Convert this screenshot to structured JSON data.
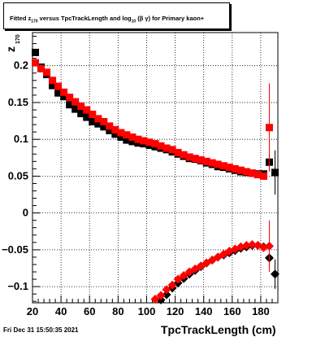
{
  "title": {
    "prefix": "Fitted  z",
    "z_sub": "170",
    "middle": "  versus TpcTrackLength and log",
    "log_sub": "10",
    "suffix": " (β  γ) for Primary kaon+"
  },
  "footer": {
    "timestamp": "Fri Dec 31 15:50:35 2021"
  },
  "chart_data": {
    "type": "scatter",
    "title": "Fitted z170 versus TpcTrackLength and log10 (β γ) for Primary kaon+",
    "xlabel": "TpcTrackLength (cm)",
    "ylabel": "z",
    "ylabel_sub": "170",
    "xlim": [
      20,
      192
    ],
    "ylim": [
      -0.122,
      0.245
    ],
    "xticks": [
      20,
      40,
      60,
      80,
      100,
      120,
      140,
      160,
      180
    ],
    "xtick_labels": [
      "20",
      "40",
      "60",
      "80",
      "100",
      "120",
      "140",
      "160",
      "180"
    ],
    "yticks": [
      -0.1,
      -0.05,
      0,
      0.05,
      0.1,
      0.15,
      0.2
    ],
    "ytick_labels": [
      "−0.1",
      "−0.05",
      "0",
      "0.05",
      "0.1",
      "0.15",
      "0.2"
    ],
    "grid": true,
    "series": [
      {
        "marker": "square",
        "color": "#000000",
        "x": [
          22,
          26,
          30,
          34,
          38,
          42,
          46,
          50,
          54,
          58,
          62,
          66,
          70,
          74,
          78,
          82,
          86,
          90,
          94,
          98,
          102,
          106,
          110,
          114,
          118,
          122,
          126,
          130,
          134,
          138,
          142,
          146,
          150,
          154,
          158,
          162,
          166,
          170,
          174,
          178,
          182,
          186,
          190
        ],
        "y": [
          0.218,
          0.198,
          0.188,
          0.173,
          0.163,
          0.158,
          0.147,
          0.141,
          0.135,
          0.13,
          0.124,
          0.121,
          0.117,
          0.112,
          0.107,
          0.103,
          0.099,
          0.097,
          0.095,
          0.094,
          0.092,
          0.09,
          0.088,
          0.086,
          0.083,
          0.08,
          0.077,
          0.074,
          0.073,
          0.071,
          0.068,
          0.066,
          0.063,
          0.062,
          0.06,
          0.058,
          0.056,
          0.055,
          0.054,
          0.053,
          0.053,
          0.069,
          0.055
        ],
        "yerr": [
          0,
          0,
          0,
          0,
          0,
          0,
          0,
          0,
          0,
          0,
          0,
          0,
          0,
          0,
          0,
          0,
          0,
          0,
          0,
          0,
          0,
          0,
          0,
          0,
          0,
          0,
          0,
          0,
          0,
          0,
          0,
          0,
          0,
          0,
          0,
          0,
          0,
          0,
          0,
          0,
          0,
          0.012,
          0.03
        ]
      },
      {
        "marker": "square",
        "color": "#ff0000",
        "x": [
          22,
          26,
          30,
          34,
          38,
          42,
          46,
          50,
          54,
          58,
          62,
          66,
          70,
          74,
          78,
          82,
          86,
          90,
          94,
          98,
          102,
          106,
          110,
          114,
          118,
          122,
          126,
          130,
          134,
          138,
          142,
          146,
          150,
          154,
          158,
          162,
          166,
          170,
          174,
          178,
          182,
          186
        ],
        "y": [
          0.204,
          0.196,
          0.191,
          0.18,
          0.172,
          0.164,
          0.157,
          0.151,
          0.145,
          0.14,
          0.134,
          0.128,
          0.124,
          0.118,
          0.113,
          0.109,
          0.106,
          0.103,
          0.1,
          0.098,
          0.096,
          0.094,
          0.091,
          0.088,
          0.086,
          0.082,
          0.079,
          0.076,
          0.074,
          0.072,
          0.07,
          0.068,
          0.066,
          0.064,
          0.062,
          0.06,
          0.058,
          0.056,
          0.054,
          0.052,
          0.05,
          0.116
        ],
        "yerr": [
          0,
          0,
          0,
          0,
          0,
          0,
          0,
          0,
          0,
          0,
          0,
          0,
          0,
          0,
          0,
          0,
          0,
          0,
          0,
          0,
          0,
          0,
          0,
          0,
          0,
          0,
          0,
          0,
          0,
          0,
          0,
          0,
          0,
          0,
          0,
          0,
          0,
          0,
          0,
          0,
          0,
          0.06
        ]
      },
      {
        "marker": "diamond",
        "color": "#000000",
        "x": [
          110,
          114,
          118,
          122,
          126,
          130,
          134,
          138,
          142,
          146,
          150,
          154,
          158,
          162,
          166,
          170,
          174,
          178,
          182,
          186,
          190
        ],
        "y": [
          -0.118,
          -0.111,
          -0.102,
          -0.095,
          -0.089,
          -0.083,
          -0.078,
          -0.073,
          -0.068,
          -0.064,
          -0.06,
          -0.057,
          -0.054,
          -0.051,
          -0.048,
          -0.046,
          -0.044,
          -0.044,
          -0.046,
          -0.061,
          -0.083
        ],
        "yerr": [
          0,
          0,
          0,
          0,
          0,
          0,
          0,
          0,
          0,
          0,
          0,
          0,
          0,
          0,
          0,
          0,
          0,
          0,
          0,
          0.012,
          0.02
        ]
      },
      {
        "marker": "diamond",
        "color": "#ff0000",
        "x": [
          106,
          110,
          114,
          118,
          122,
          126,
          130,
          134,
          138,
          142,
          146,
          150,
          154,
          158,
          162,
          166,
          170,
          174,
          178,
          182,
          186
        ],
        "y": [
          -0.117,
          -0.112,
          -0.104,
          -0.098,
          -0.09,
          -0.085,
          -0.08,
          -0.076,
          -0.072,
          -0.068,
          -0.064,
          -0.06,
          -0.056,
          -0.052,
          -0.049,
          -0.046,
          -0.044,
          -0.043,
          -0.044,
          -0.047,
          -0.045
        ],
        "yerr": [
          0,
          0,
          0,
          0,
          0,
          0,
          0,
          0,
          0,
          0,
          0,
          0,
          0,
          0,
          0,
          0,
          0,
          0,
          0,
          0,
          0.035
        ]
      }
    ]
  }
}
